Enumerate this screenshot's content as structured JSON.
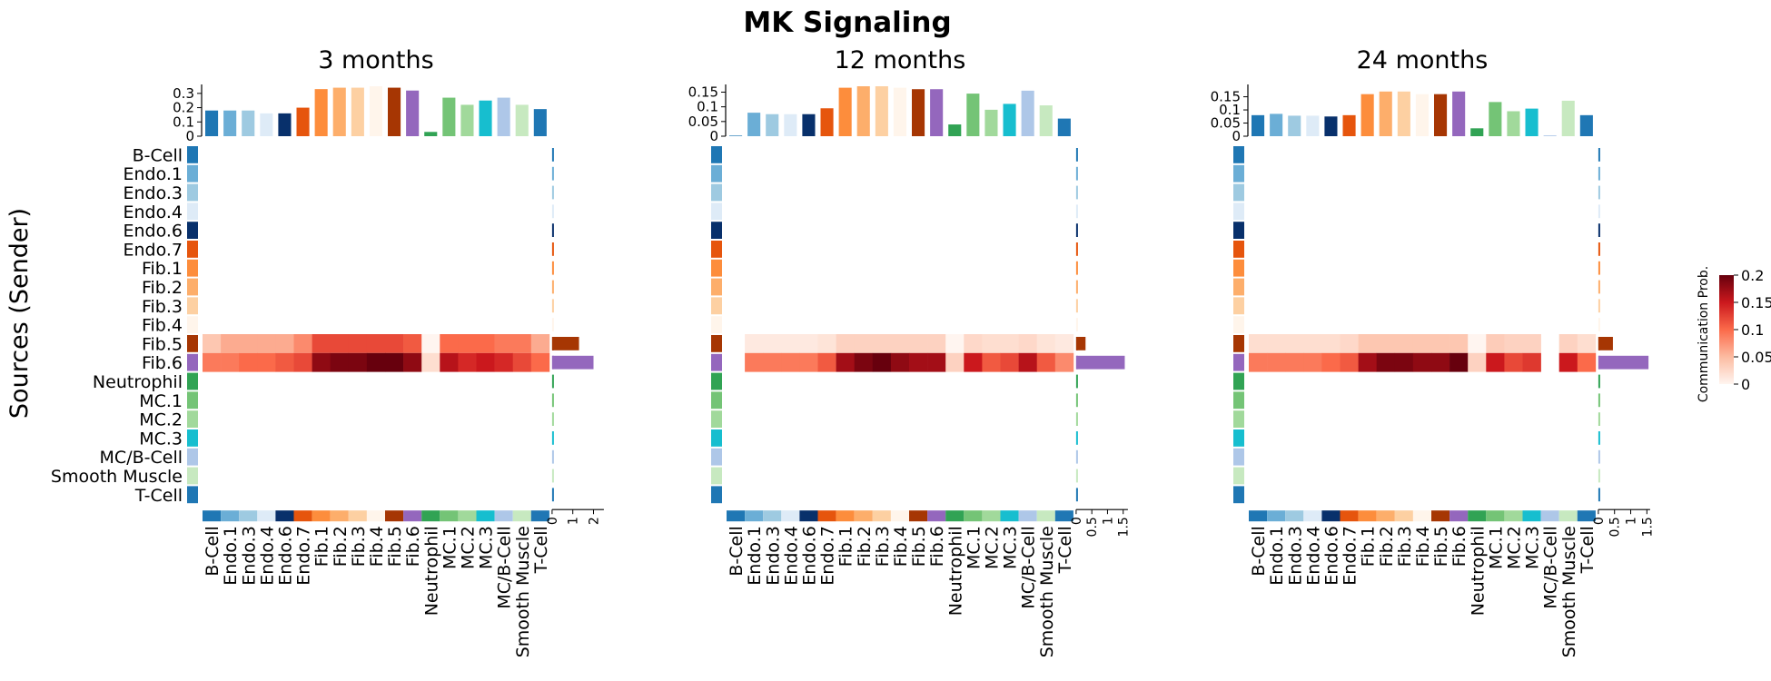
{
  "figure": {
    "title": "MK Signaling",
    "ylabel": "Sources (Sender)",
    "colorbar": {
      "label": "Communication Prob.",
      "ticks": [
        "0",
        "0.05",
        "0.1",
        "0.15",
        "0.2"
      ],
      "range": [
        0,
        0.2
      ],
      "colors": [
        "#fff5f0",
        "#fcbba1",
        "#fb6a4a",
        "#cb181d",
        "#67000d"
      ]
    }
  },
  "cell_types": [
    "B-Cell",
    "Endo.1",
    "Endo.3",
    "Endo.4",
    "Endo.6",
    "Endo.7",
    "Fib.1",
    "Fib.2",
    "Fib.3",
    "Fib.4",
    "Fib.5",
    "Fib.6",
    "Neutrophil",
    "MC.1",
    "MC.2",
    "MC.3",
    "MC/B-Cell",
    "Smooth Muscle",
    "T-Cell"
  ],
  "cell_colors": [
    "#1f77b4",
    "#6baed6",
    "#9ecae1",
    "#deebf7",
    "#08306b",
    "#e6550d",
    "#fd8d3c",
    "#fdae6b",
    "#fdd0a2",
    "#fff5eb",
    "#a63603",
    "#9467bd",
    "#31a354",
    "#74c476",
    "#a1d99b",
    "#17becf",
    "#aec7e8",
    "#c7e9c0",
    "#1f77b4"
  ],
  "chart_data": [
    {
      "type": "heatmap",
      "title": "3 months",
      "top_bar": {
        "yticks": [
          "0",
          "0.1",
          "0.2",
          "0.3"
        ],
        "ylim": [
          0,
          0.35
        ],
        "values": [
          0.18,
          0.18,
          0.18,
          0.16,
          0.16,
          0.2,
          0.33,
          0.34,
          0.34,
          0.35,
          0.34,
          0.32,
          0.03,
          0.27,
          0.22,
          0.25,
          0.27,
          0.22,
          0.19
        ]
      },
      "right_bar": {
        "xticks": [
          "0",
          "1",
          "2"
        ],
        "xlim": [
          0,
          2.5
        ],
        "values": [
          0,
          0,
          0,
          0,
          0,
          0,
          0,
          0,
          0,
          0,
          1.3,
          2.0,
          0,
          0,
          0,
          0,
          0,
          0,
          0
        ]
      },
      "matrix_rows": {
        "Fib.5": [
          0.04,
          0.06,
          0.06,
          0.06,
          0.06,
          0.08,
          0.12,
          0.12,
          0.12,
          0.12,
          0.12,
          0.11,
          0.0,
          0.1,
          0.1,
          0.1,
          0.09,
          0.09,
          0.06
        ],
        "Fib.6": [
          0.09,
          0.09,
          0.1,
          0.1,
          0.11,
          0.12,
          0.18,
          0.19,
          0.19,
          0.2,
          0.2,
          0.18,
          0.02,
          0.16,
          0.14,
          0.15,
          0.14,
          0.12,
          0.1
        ]
      }
    },
    {
      "type": "heatmap",
      "title": "12 months",
      "top_bar": {
        "yticks": [
          "0",
          "0.05",
          "0.1",
          "0.15"
        ],
        "ylim": [
          0,
          0.17
        ],
        "values": [
          0.002,
          0.08,
          0.075,
          0.075,
          0.075,
          0.095,
          0.165,
          0.17,
          0.17,
          0.165,
          0.16,
          0.16,
          0.04,
          0.145,
          0.09,
          0.11,
          0.155,
          0.105,
          0.06
        ]
      },
      "right_bar": {
        "xticks": [
          "0",
          "0.5",
          "1",
          "1.5"
        ],
        "xlim": [
          0,
          1.65
        ],
        "values": [
          0,
          0,
          0,
          0,
          0,
          0,
          0,
          0,
          0,
          0,
          0.3,
          1.55,
          0,
          0,
          0,
          0,
          0,
          0,
          0
        ]
      },
      "matrix_rows": {
        "Fib.5": [
          null,
          0.01,
          0.01,
          0.01,
          0.01,
          0.015,
          0.03,
          0.03,
          0.03,
          0.03,
          0.03,
          0.03,
          0.0,
          0.025,
          0.02,
          0.02,
          0.025,
          0.015,
          0.01
        ],
        "Fib.6": [
          null,
          0.09,
          0.09,
          0.09,
          0.09,
          0.11,
          0.17,
          0.19,
          0.2,
          0.18,
          0.17,
          0.17,
          0.03,
          0.15,
          0.11,
          0.12,
          0.16,
          0.11,
          0.08
        ]
      }
    },
    {
      "type": "heatmap",
      "title": "24 months",
      "top_bar": {
        "yticks": [
          "0",
          "0.05",
          "0.1",
          "0.15"
        ],
        "ylim": [
          0,
          0.19
        ],
        "values": [
          0.08,
          0.085,
          0.078,
          0.078,
          0.075,
          0.08,
          0.16,
          0.17,
          0.17,
          0.16,
          0.16,
          0.17,
          0.03,
          0.13,
          0.095,
          0.105,
          0.003,
          0.135,
          0.08
        ]
      },
      "right_bar": {
        "xticks": [
          "0",
          "0.5",
          "1",
          "1.5"
        ],
        "xlim": [
          0,
          1.6
        ],
        "values": [
          0,
          0,
          0,
          0,
          0,
          0,
          0,
          0,
          0,
          0,
          0.45,
          1.55,
          0,
          0,
          0,
          0,
          0,
          0,
          0
        ]
      },
      "matrix_rows": {
        "Fib.5": [
          0.02,
          0.02,
          0.02,
          0.02,
          0.02,
          0.025,
          0.04,
          0.04,
          0.04,
          0.04,
          0.04,
          0.04,
          0.0,
          0.035,
          0.03,
          0.03,
          null,
          0.03,
          0.02
        ],
        "Fib.6": [
          0.09,
          0.09,
          0.09,
          0.09,
          0.1,
          0.11,
          0.17,
          0.19,
          0.19,
          0.18,
          0.18,
          0.2,
          0.03,
          0.15,
          0.12,
          0.13,
          null,
          0.15,
          0.1
        ]
      }
    }
  ]
}
